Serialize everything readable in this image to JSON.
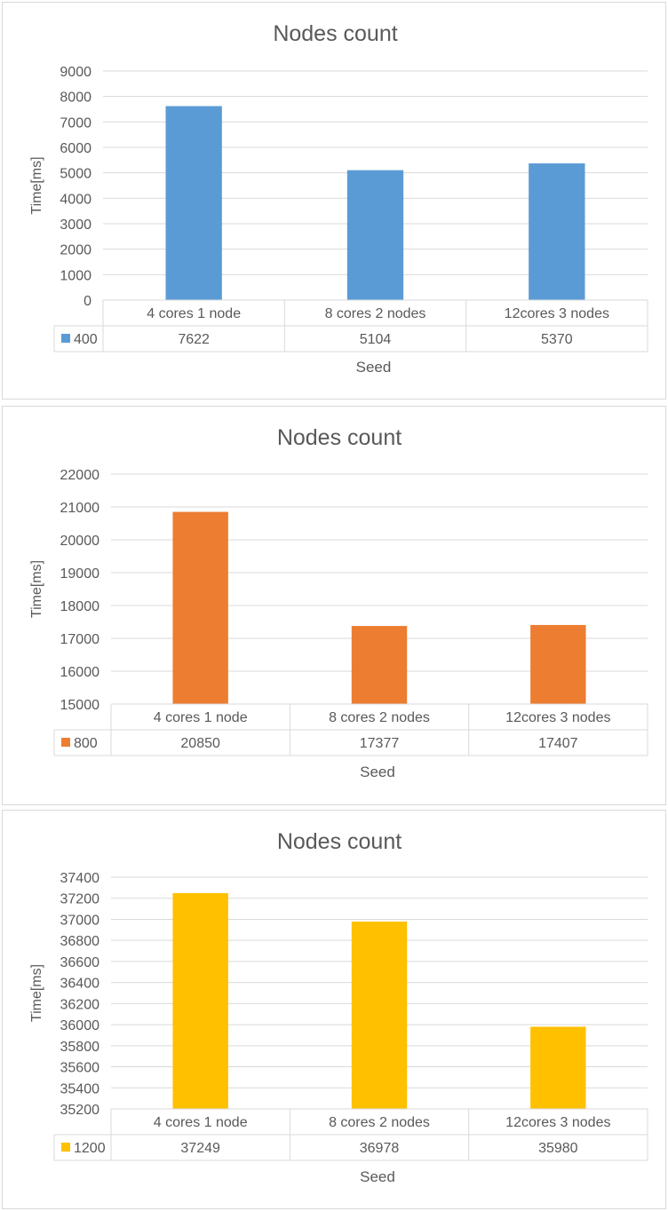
{
  "chart_data": [
    {
      "type": "bar",
      "title": "Nodes count",
      "xlabel": "Seed",
      "ylabel": "Time[ms]",
      "categories": [
        "4 cores 1 node",
        "8 cores 2 nodes",
        "12cores 3 nodes"
      ],
      "series": [
        {
          "name": "400",
          "values": [
            7622,
            5104,
            5370
          ],
          "color": "#5b9bd5"
        }
      ],
      "ylim": [
        0,
        9000
      ],
      "ytick_step": 1000,
      "grid": true,
      "data_table": true
    },
    {
      "type": "bar",
      "title": "Nodes count",
      "xlabel": "Seed",
      "ylabel": "Time[ms]",
      "categories": [
        "4 cores 1 node",
        "8 cores 2 nodes",
        "12cores 3 nodes"
      ],
      "series": [
        {
          "name": "800",
          "values": [
            20850,
            17377,
            17407
          ],
          "color": "#ed7d31"
        }
      ],
      "ylim": [
        15000,
        22000
      ],
      "ytick_step": 1000,
      "grid": true,
      "data_table": true
    },
    {
      "type": "bar",
      "title": "Nodes count",
      "xlabel": "Seed",
      "ylabel": "Time[ms]",
      "categories": [
        "4 cores 1 node",
        "8 cores 2 nodes",
        "12cores 3 nodes"
      ],
      "series": [
        {
          "name": "1200",
          "values": [
            37249,
            36978,
            35980
          ],
          "color": "#ffc000"
        }
      ],
      "ylim": [
        35200,
        37400
      ],
      "ytick_step": 200,
      "grid": true,
      "data_table": true
    }
  ]
}
